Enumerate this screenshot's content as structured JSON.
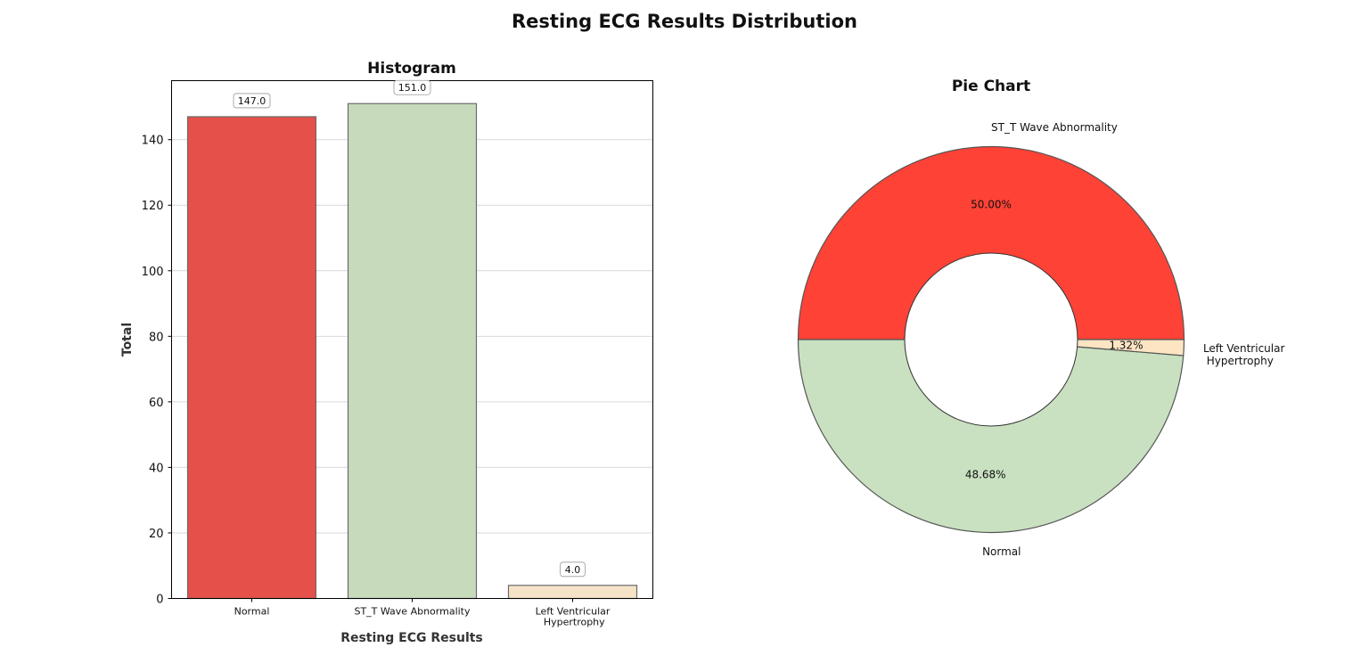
{
  "figure": {
    "title": "Resting ECG Results Distribution"
  },
  "chart_data": [
    {
      "type": "bar",
      "title": "Histogram",
      "xlabel": "Resting ECG Results",
      "ylabel": "Total",
      "categories": [
        "Normal",
        "ST_T Wave Abnormality",
        "Left Ventricular Hypertrophy"
      ],
      "category_tick_lines": [
        [
          "Normal"
        ],
        [
          "ST_T Wave Abnormality"
        ],
        [
          "Left Ventricular",
          " Hypertrophy"
        ]
      ],
      "values": [
        147.0,
        151.0,
        4.0
      ],
      "value_labels": [
        "147.0",
        "151.0",
        "4.0"
      ],
      "colors": [
        "#e5504a",
        "#c7dbbc",
        "#f6e2c7"
      ],
      "ylim": [
        0,
        158
      ],
      "yticks": [
        0,
        20,
        40,
        60,
        80,
        100,
        120,
        140
      ],
      "ytick_labels": [
        "0",
        "20",
        "40",
        "60",
        "80",
        "100",
        "120",
        "140"
      ],
      "grid": "horizontal"
    },
    {
      "type": "pie",
      "title": "Pie Chart",
      "donut": true,
      "slices": [
        {
          "label": "ST_T Wave Abnormality",
          "label_lines": [
            "ST_T Wave Abnormality"
          ],
          "value": 151,
          "percent_label": "50.00%",
          "color": "#ff4236"
        },
        {
          "label": "Normal",
          "label_lines": [
            "Normal"
          ],
          "value": 147,
          "percent_label": "48.68%",
          "color": "#c9e1c1"
        },
        {
          "label": "Left Ventricular Hypertrophy",
          "label_lines": [
            "Left Ventricular",
            " Hypertrophy"
          ],
          "value": 4,
          "percent_label": "1.32%",
          "color": "#fde5c4"
        }
      ],
      "start_angle_deg": 0,
      "direction": "counterclockwise"
    }
  ]
}
